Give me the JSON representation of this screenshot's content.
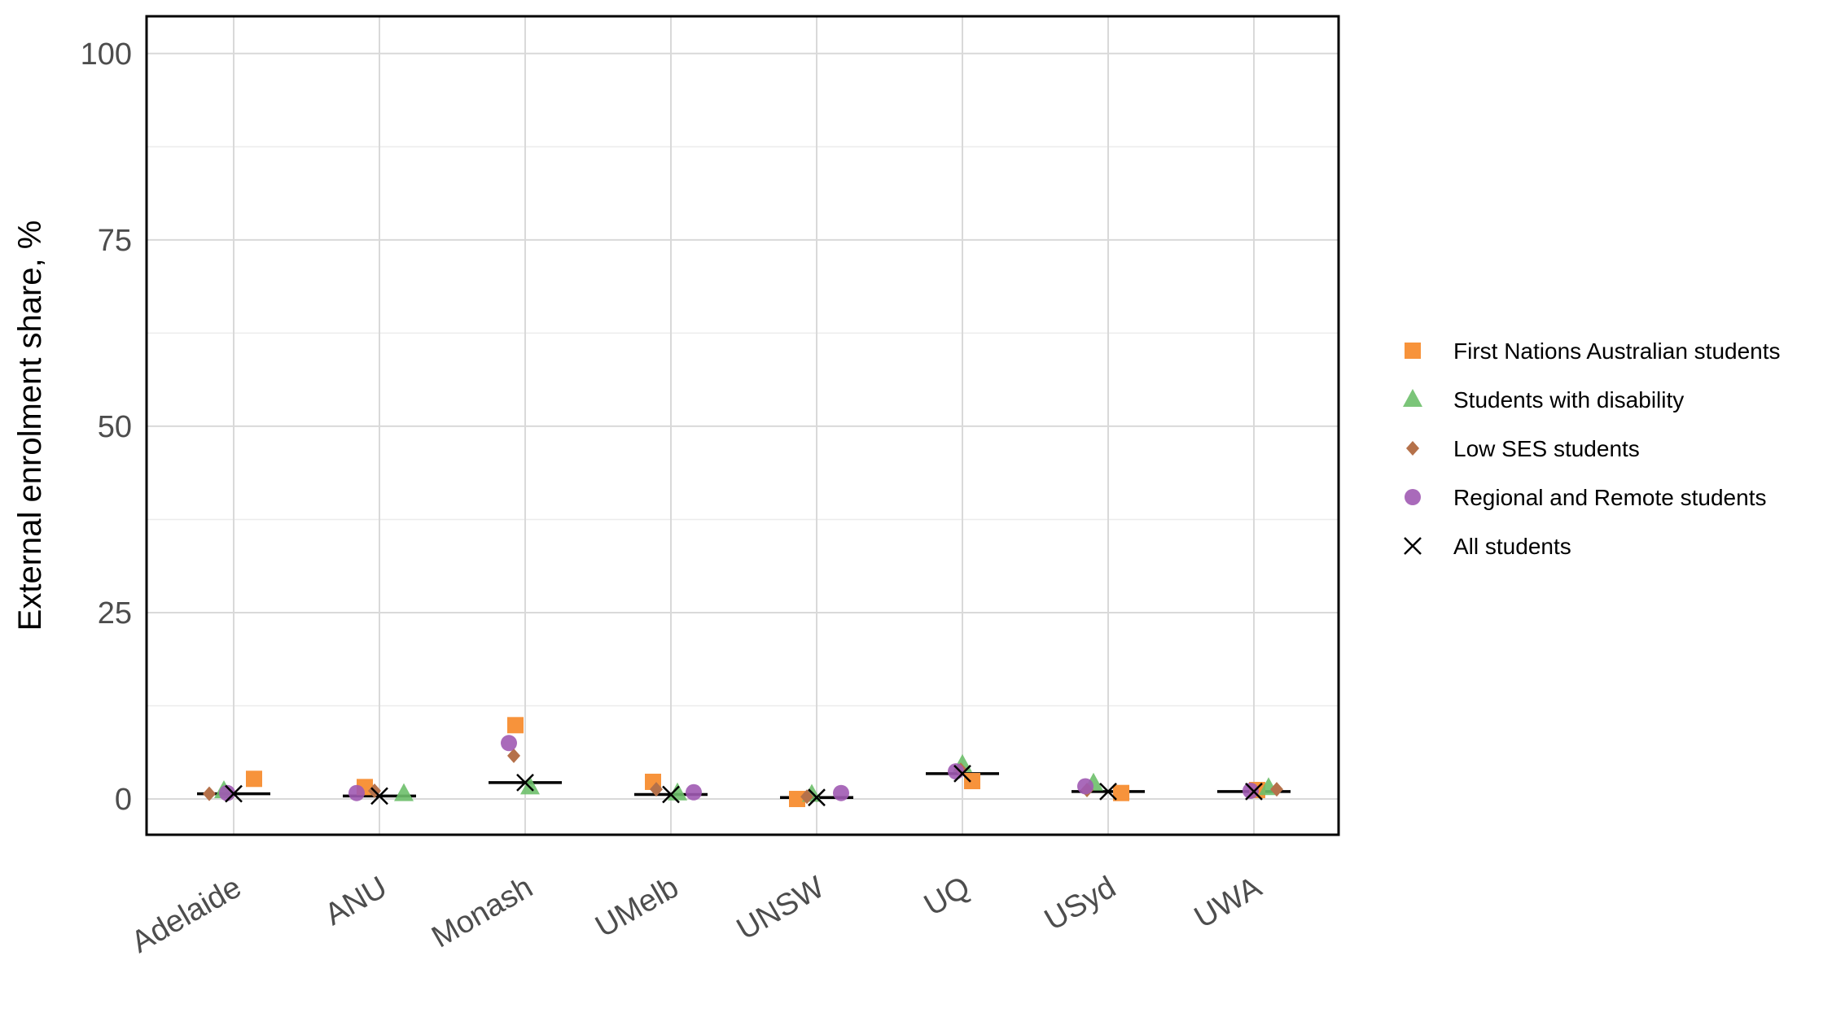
{
  "chart_data": {
    "type": "scatter",
    "title": "",
    "xlabel": "",
    "ylabel": "External enrolment share, %",
    "ylim": [
      -4.8,
      105
    ],
    "yticks": [
      0,
      25,
      50,
      75,
      100
    ],
    "grid": true,
    "legend_position": "right",
    "categories": [
      "Adelaide",
      "ANU",
      "Monash",
      "UMelb",
      "UNSW",
      "UQ",
      "USyd",
      "UWA"
    ],
    "series": [
      {
        "name": "First Nations Australian students",
        "marker": "square",
        "color": "#F7933B",
        "values": [
          2.7,
          1.6,
          9.9,
          2.3,
          0.0,
          2.4,
          0.8,
          1.2
        ]
      },
      {
        "name": "Students with disability",
        "marker": "triangle",
        "color": "#6DBF6A",
        "values": [
          1.1,
          0.7,
          1.6,
          0.8,
          0.6,
          4.6,
          2.1,
          1.5
        ]
      },
      {
        "name": "Low SES students",
        "marker": "diamond",
        "color": "#B5714A",
        "values": [
          0.7,
          1.1,
          5.8,
          1.3,
          0.3,
          3.9,
          1.2,
          1.3
        ]
      },
      {
        "name": "Regional and Remote students",
        "marker": "circle",
        "color": "#A05AB3",
        "values": [
          0.8,
          0.8,
          7.5,
          0.9,
          0.8,
          3.7,
          1.7,
          1.1
        ]
      },
      {
        "name": "All students",
        "marker": "cross",
        "color": "#000000",
        "values": [
          0.7,
          0.4,
          2.2,
          0.6,
          0.2,
          3.4,
          1.0,
          1.0
        ]
      }
    ]
  }
}
